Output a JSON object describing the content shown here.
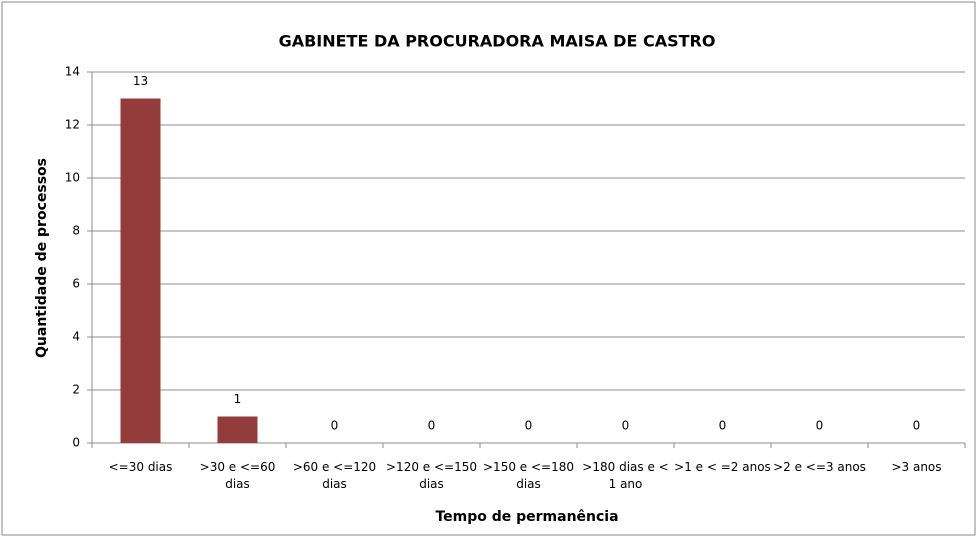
{
  "chart_data": {
    "type": "bar",
    "title": "GABINETE DA PROCURADORA MAISA DE CASTRO",
    "x_label": "Tempo de permanência",
    "y_label": "Quantidade de processos",
    "categories": [
      "<=30 dias",
      ">30 e <=60 dias",
      ">60 e <=120 dias",
      ">120 e <=150 dias",
      ">150 e <=180 dias",
      ">180 dias e < 1 ano",
      ">1 e < =2 anos",
      ">2 e <=3 anos",
      ">3 anos"
    ],
    "values": [
      13,
      1,
      0,
      0,
      0,
      0,
      0,
      0,
      0
    ],
    "color": "#943c3c",
    "ylim": [
      0,
      14
    ],
    "yticks": [
      0,
      2,
      4,
      6,
      8,
      10,
      12,
      14
    ],
    "grid": true
  }
}
